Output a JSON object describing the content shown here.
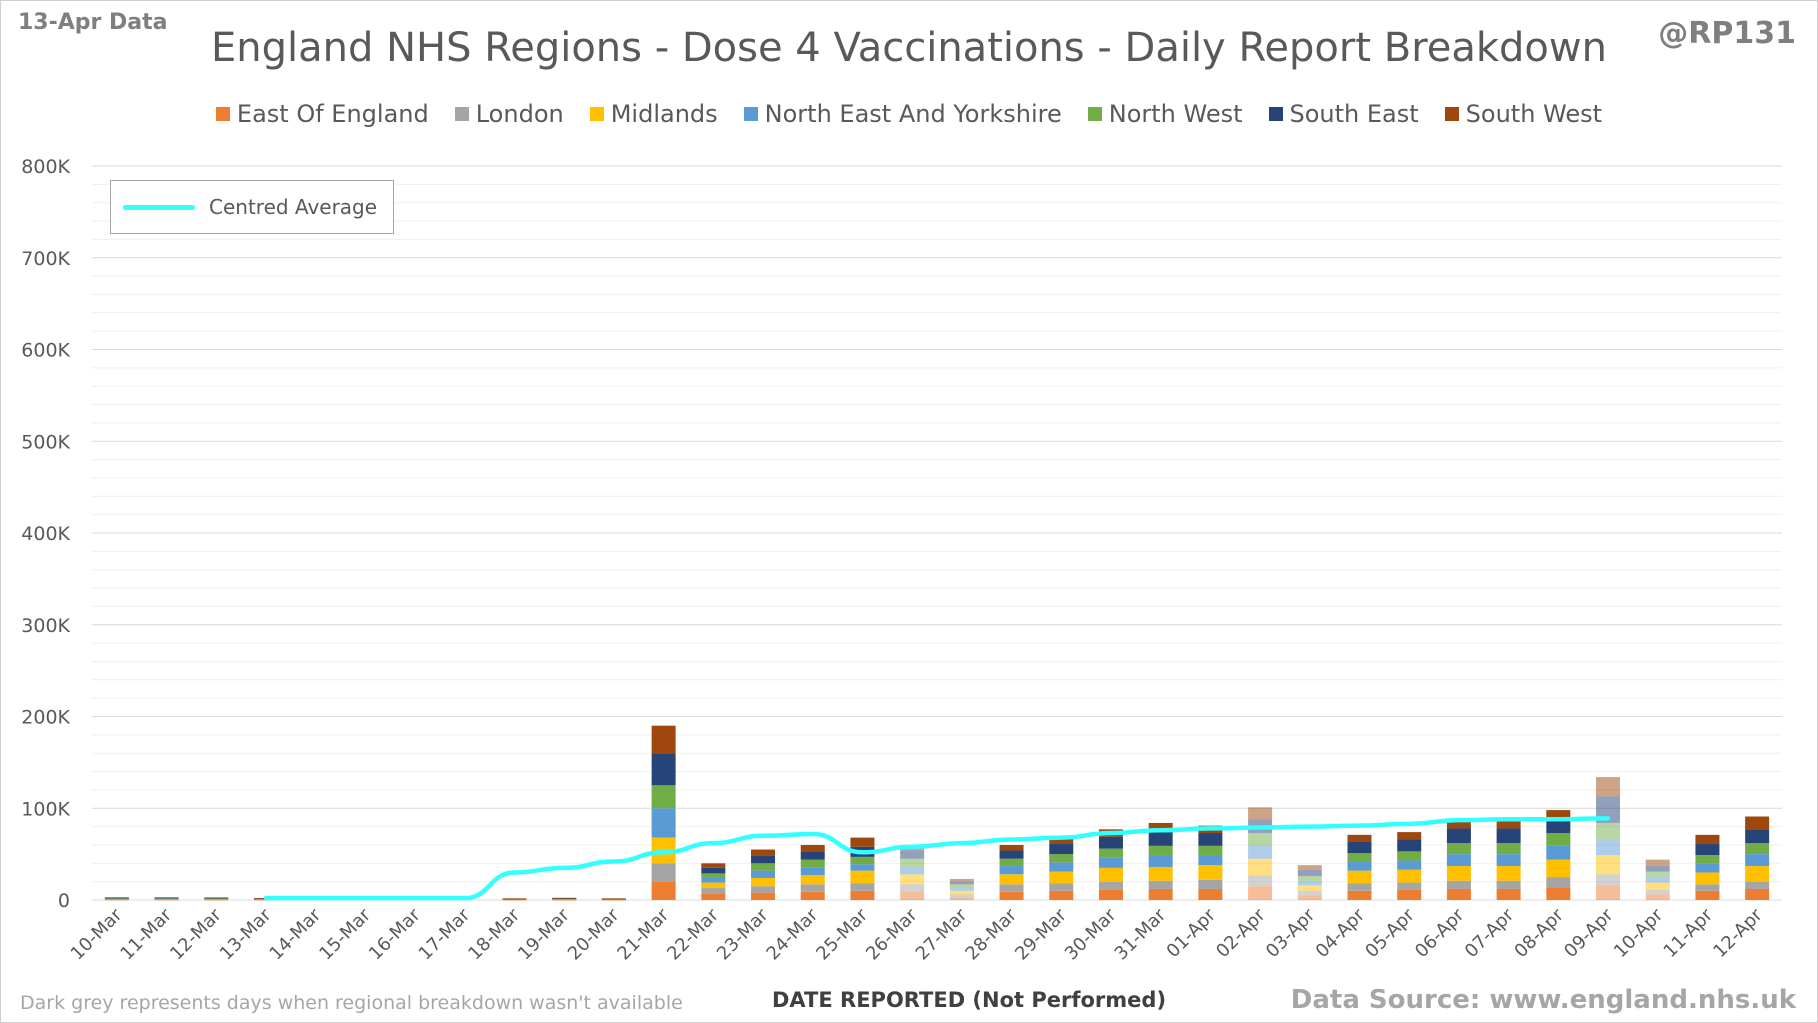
{
  "header": {
    "date_tag": "13-Apr Data",
    "handle": "@RP131"
  },
  "footer": {
    "note": "Dark grey represents days when regional breakdown wasn't available",
    "source": "Data Source: www.england.nhs.uk"
  },
  "legend_average_label": "Centred Average",
  "chart_data": {
    "type": "bar",
    "stacked": true,
    "title": "England NHS Regions - Dose 4 Vaccinations - Daily Report Breakdown",
    "xlabel": "DATE REPORTED (Not Performed)",
    "ylabel": "",
    "ylim": [
      0,
      800000
    ],
    "yticks": [
      "0",
      "100K",
      "200K",
      "300K",
      "400K",
      "500K",
      "600K",
      "700K",
      "800K"
    ],
    "grid": true,
    "legend_position": "top",
    "categories": [
      "10-Mar",
      "11-Mar",
      "12-Mar",
      "13-Mar",
      "14-Mar",
      "15-Mar",
      "16-Mar",
      "17-Mar",
      "18-Mar",
      "19-Mar",
      "20-Mar",
      "21-Mar",
      "22-Mar",
      "23-Mar",
      "24-Mar",
      "25-Mar",
      "26-Mar",
      "27-Mar",
      "28-Mar",
      "29-Mar",
      "30-Mar",
      "31-Mar",
      "01-Apr",
      "02-Apr",
      "03-Apr",
      "04-Apr",
      "05-Apr",
      "06-Apr",
      "07-Apr",
      "08-Apr",
      "09-Apr",
      "10-Apr",
      "11-Apr",
      "12-Apr"
    ],
    "faded_categories": [
      "26-Mar",
      "27-Mar",
      "02-Apr",
      "03-Apr",
      "09-Apr",
      "10-Apr"
    ],
    "series": [
      {
        "name": "East Of England",
        "color": "#ed7d31",
        "values": [
          500,
          500,
          500,
          400,
          0,
          0,
          0,
          0,
          300,
          400,
          300,
          20000,
          7000,
          8000,
          9000,
          10000,
          9000,
          3000,
          9000,
          10000,
          11000,
          12000,
          12000,
          15000,
          5000,
          10000,
          11000,
          12000,
          12000,
          14000,
          16000,
          6000,
          10000,
          12000
        ]
      },
      {
        "name": "London",
        "color": "#a5a5a5",
        "values": [
          300,
          300,
          300,
          200,
          0,
          0,
          0,
          0,
          200,
          300,
          200,
          20000,
          6000,
          7000,
          8000,
          8000,
          8000,
          3000,
          8000,
          8000,
          9000,
          9000,
          10000,
          12000,
          5000,
          8000,
          8000,
          9000,
          9000,
          11000,
          12000,
          5000,
          7000,
          8000
        ]
      },
      {
        "name": "Midlands",
        "color": "#ffc000",
        "values": [
          500,
          500,
          500,
          400,
          0,
          0,
          0,
          0,
          300,
          400,
          300,
          28000,
          6000,
          9000,
          10000,
          14000,
          11000,
          4000,
          11000,
          13000,
          15000,
          15000,
          16000,
          18000,
          6000,
          14000,
          14000,
          16000,
          16000,
          19000,
          21000,
          8000,
          13000,
          17000
        ]
      },
      {
        "name": "North East And Yorkshire",
        "color": "#5b9bd5",
        "values": [
          400,
          500,
          400,
          300,
          0,
          0,
          0,
          0,
          300,
          300,
          300,
          32000,
          5000,
          8000,
          8000,
          7000,
          8000,
          3000,
          9000,
          10000,
          11000,
          12000,
          10000,
          15000,
          5000,
          10000,
          10000,
          13000,
          13000,
          15000,
          17000,
          6000,
          10000,
          13000
        ]
      },
      {
        "name": "North West",
        "color": "#70ad47",
        "values": [
          500,
          500,
          400,
          300,
          0,
          0,
          0,
          0,
          300,
          400,
          300,
          25000,
          5000,
          8000,
          9000,
          8000,
          9000,
          4000,
          8000,
          9000,
          10000,
          11000,
          11000,
          13000,
          5000,
          9000,
          10000,
          12000,
          12000,
          14000,
          18000,
          6000,
          9000,
          12000
        ]
      },
      {
        "name": "South East",
        "color": "#264478",
        "values": [
          400,
          300,
          400,
          300,
          0,
          0,
          0,
          0,
          200,
          300,
          200,
          35000,
          6000,
          8000,
          9000,
          11000,
          9000,
          3000,
          9000,
          11000,
          13000,
          16000,
          14000,
          15000,
          7000,
          13000,
          13000,
          16000,
          16000,
          16000,
          29000,
          6000,
          12000,
          15000
        ]
      },
      {
        "name": "South West",
        "color": "#9e480e",
        "values": [
          300,
          300,
          300,
          200,
          0,
          0,
          0,
          0,
          200,
          300,
          200,
          30000,
          5000,
          7000,
          7000,
          10000,
          6000,
          3000,
          6000,
          7000,
          8000,
          9000,
          8000,
          13000,
          5000,
          7000,
          8000,
          9000,
          10000,
          9000,
          21000,
          7000,
          10000,
          14000
        ]
      }
    ],
    "centred_average": {
      "name": "Centred Average",
      "color": "#33ffff",
      "values": [
        null,
        null,
        null,
        2000,
        2000,
        2000,
        2000,
        2000,
        30000,
        35000,
        42000,
        52000,
        62000,
        70000,
        72000,
        52000,
        58000,
        62000,
        66000,
        68000,
        73000,
        76000,
        78000,
        79000,
        80000,
        81000,
        83000,
        87000,
        88000,
        88000,
        89000,
        null,
        null,
        null
      ]
    }
  }
}
